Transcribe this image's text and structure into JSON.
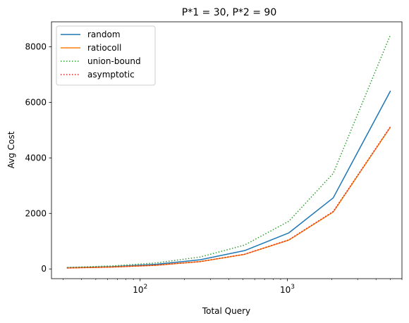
{
  "chart_data": {
    "type": "line",
    "title": "P*1 = 30, P*2 = 90",
    "xlabel": "Total Query",
    "ylabel": "Avg Cost",
    "x_scale": "log",
    "xlim": [
      25,
      6000
    ],
    "ylim": [
      -350,
      8900
    ],
    "x_ticks": [
      {
        "value": 100,
        "base": "10",
        "exp": "2"
      },
      {
        "value": 1000,
        "base": "10",
        "exp": "3"
      }
    ],
    "y_ticks": [
      0,
      2000,
      4000,
      6000,
      8000
    ],
    "legend_position": "upper left",
    "x": [
      32,
      64,
      128,
      256,
      512,
      1024,
      2048,
      5000
    ],
    "series": [
      {
        "name": "random",
        "color": "#1f77b4",
        "style": "solid",
        "values": [
          42,
          82,
          165,
          330,
          660,
          1300,
          2560,
          6400
        ]
      },
      {
        "name": "ratiocoll",
        "color": "#ff7f0e",
        "style": "solid",
        "values": [
          34,
          67,
          132,
          265,
          525,
          1040,
          2050,
          5100
        ]
      },
      {
        "name": "union-bound",
        "color": "#2ca02c",
        "style": "dotted",
        "values": [
          55,
          108,
          215,
          430,
          860,
          1720,
          3440,
          8420
        ]
      },
      {
        "name": "asymptotic",
        "color": "#d62728",
        "style": "dotted",
        "values": [
          34,
          67,
          133,
          266,
          530,
          1050,
          2070,
          5120
        ]
      }
    ]
  }
}
